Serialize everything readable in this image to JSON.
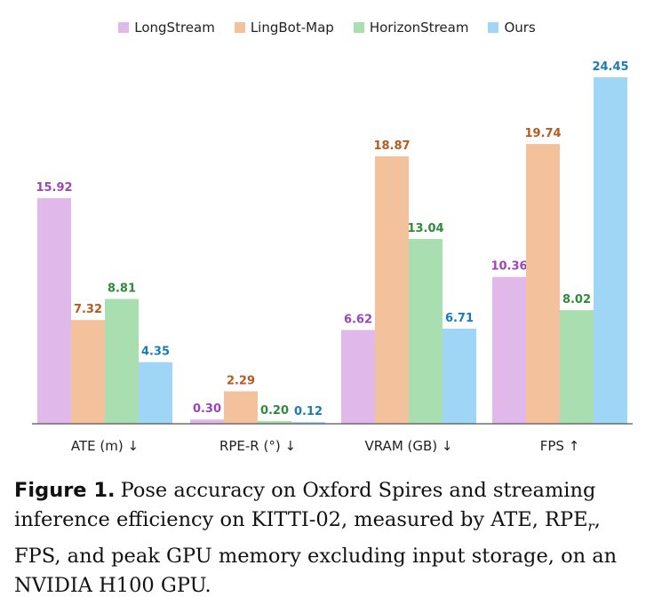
{
  "chart_data": {
    "type": "bar",
    "categories": [
      "ATE (m) ↓",
      "RPE-R (°) ↓",
      "VRAM (GB) ↓",
      "FPS ↑"
    ],
    "series": [
      {
        "name": "LongStream",
        "color": "#e0b9ea",
        "label_color": "#9b45b8",
        "values": [
          15.92,
          0.3,
          6.62,
          10.36
        ]
      },
      {
        "name": "LingBot-Map",
        "color": "#f3c29c",
        "label_color": "#b8591f",
        "values": [
          7.32,
          2.29,
          18.87,
          19.74
        ]
      },
      {
        "name": "HorizonStream",
        "color": "#a9deb1",
        "label_color": "#2f8a3a",
        "values": [
          8.81,
          0.2,
          13.04,
          8.02
        ]
      },
      {
        "name": "Ours",
        "color": "#9fd5f5",
        "label_color": "#1a7bb5",
        "values": [
          4.35,
          0.12,
          6.71,
          24.45
        ]
      }
    ],
    "value_labels": [
      [
        "15.92",
        "0.30",
        "6.62",
        "10.36"
      ],
      [
        "7.32",
        "2.29",
        "18.87",
        "19.74"
      ],
      [
        "8.81",
        "0.20",
        "13.04",
        "8.02"
      ],
      [
        "4.35",
        "0.12",
        "6.71",
        "24.45"
      ]
    ],
    "legend": "top-center",
    "grid": false
  },
  "caption": {
    "label": "Figure 1.",
    "text": "Pose accuracy on Oxford Spires and streaming inference efficiency on KITTI-02, measured by ATE, RPE",
    "subscript": "r",
    "text_after": ", FPS, and peak GPU memory excluding input storage, on an NVIDIA H100 GPU."
  }
}
